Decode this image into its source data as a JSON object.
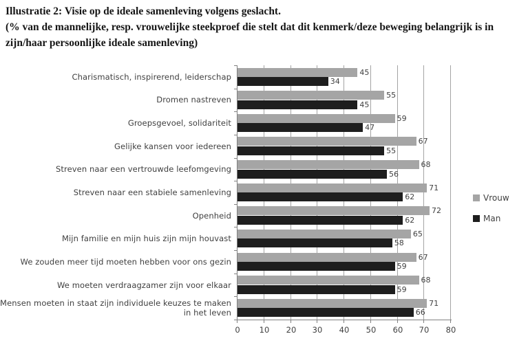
{
  "header": {
    "title": "Illustratie 2: Visie op de ideale samenleving volgens geslacht.",
    "subtitle": "(% van de mannelijke, resp. vrouwelijke steekproef die stelt dat dit kenmerk/deze beweging belangrijk is in zijn/haar persoonlijke ideale samenleving)"
  },
  "chart_data": {
    "type": "bar",
    "orientation": "horizontal",
    "title": "Illustratie 2: Visie op de ideale samenleving volgens geslacht.",
    "categories": [
      "Charismatisch, inspirerend, leiderschap",
      "Dromen nastreven",
      "Groepsgevoel, solidariteit",
      "Gelijke kansen voor iedereen",
      "Streven naar een vertrouwde leefomgeving",
      "Streven naar een stabiele samenleving",
      "Openheid",
      "Mijn familie en mijn huis zijn mijn houvast",
      "We zouden meer tijd moeten hebben voor ons gezin",
      "We moeten verdraagzamer zijn voor elkaar",
      "Mensen moeten in staat zijn individuele keuzes te maken in het leven"
    ],
    "series": [
      {
        "name": "Vrouw",
        "color": "#a5a5a5",
        "values": [
          45,
          55,
          59,
          67,
          68,
          71,
          72,
          65,
          67,
          68,
          71
        ]
      },
      {
        "name": "Man",
        "color": "#1e1e1e",
        "values": [
          34,
          45,
          47,
          55,
          56,
          62,
          62,
          58,
          59,
          59,
          66
        ]
      }
    ],
    "xlabel": "",
    "ylabel": "",
    "xlim": [
      0,
      80
    ],
    "x_ticks": [
      0,
      10,
      20,
      30,
      40,
      50,
      60,
      70,
      80
    ],
    "grid": true,
    "data_labels": true,
    "legend_position": "right",
    "colors": {
      "axis": "#808080",
      "gridline": "#a3a3a3",
      "label_text": "#3f3f3f",
      "value_text": "#404040"
    }
  }
}
